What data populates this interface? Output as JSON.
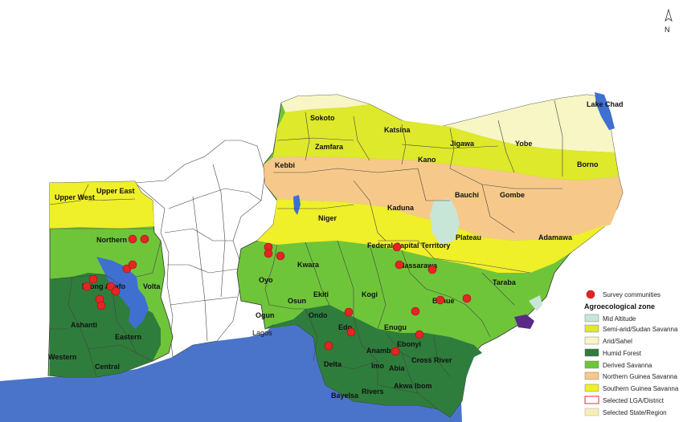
{
  "map": {
    "north_label": "N",
    "colors": {
      "sea": "#4a74c9",
      "water": "#3f6fd0",
      "mid_altitude": "#c8e6d8",
      "semi_arid": "#dde92a",
      "arid": "#f7f6c4",
      "humid_forest": "#2f7d3c",
      "derived_savanna": "#6fc53a",
      "northern_guinea": "#f6c98a",
      "southern_guinea": "#efef2a",
      "selected_lga": "#e03030",
      "selected_state": "#f6f0b8",
      "survey": "#e52424"
    },
    "ghana_labels": [
      "Upper East",
      "Upper West",
      "Northern",
      "Brong Ahafo",
      "Volta",
      "Ashanti",
      "Eastern",
      "Western",
      "Central"
    ],
    "nigeria_labels": [
      "Sokoto",
      "Katsina",
      "Zamfara",
      "Jigawa",
      "Yobe",
      "Kano",
      "Borno",
      "Kebbi",
      "Bauchi",
      "Gombe",
      "Kaduna",
      "Niger",
      "Plateau",
      "Adamawa",
      "Federal Capital Territory",
      "Nassarawa",
      "Kwara",
      "Oyo",
      "Osun",
      "Ekiti",
      "Kogi",
      "Benue",
      "Taraba",
      "Ogun",
      "Ondo",
      "Edo",
      "Enugu",
      "Ebonyi",
      "Lagos",
      "Delta",
      "Anambra",
      "Imo",
      "Abia",
      "Cross River",
      "Rivers",
      "Bayelsa",
      "Akwa Ibom",
      "Lake Chad"
    ]
  },
  "legend": {
    "survey_label": "Survey communities",
    "zone_title": "Agroecological zone",
    "items": [
      "Mid Altitude",
      "Semi-arid/Sudan Savanna",
      "Arid/Sahel",
      "Humid Forest",
      "Derived Savanna",
      "Northern Guinea Savanna",
      "Southern Guinea Savanna",
      "Selected LGA/District",
      "Selected State/Region"
    ]
  }
}
